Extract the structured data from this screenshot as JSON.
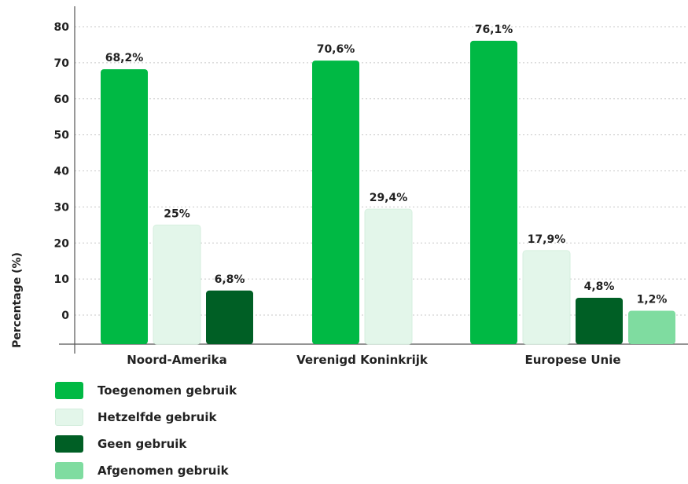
{
  "chart_data": {
    "type": "bar",
    "ylabel": "Percentage (%)",
    "ylim": [
      -8,
      84
    ],
    "yticks": [
      0,
      10,
      20,
      30,
      40,
      50,
      60,
      70,
      80
    ],
    "categories": [
      "Noord-Amerika",
      "Verenigd Koninkrijk",
      "Europese Unie"
    ],
    "series": [
      {
        "name": "Toegenomen gebruik",
        "color": "#00b944",
        "values": [
          68.2,
          70.6,
          76.1
        ],
        "labels": [
          "68,2%",
          "70,6%",
          "76,1%"
        ]
      },
      {
        "name": "Hetzelfde gebruik",
        "color": "#e3f6ea",
        "values": [
          25,
          29.4,
          17.9
        ],
        "labels": [
          "25%",
          "29,4%",
          "17,9%"
        ]
      },
      {
        "name": "Geen gebruik",
        "color": "#005f25",
        "values": [
          6.8,
          null,
          4.8
        ],
        "labels": [
          "6,8%",
          null,
          "4,8%"
        ]
      },
      {
        "name": "Afgenomen gebruik",
        "color": "#7fdca0",
        "values": [
          null,
          null,
          1.2
        ],
        "labels": [
          null,
          null,
          "1,2%"
        ]
      }
    ],
    "grid": true,
    "legend": "bottom-left"
  }
}
